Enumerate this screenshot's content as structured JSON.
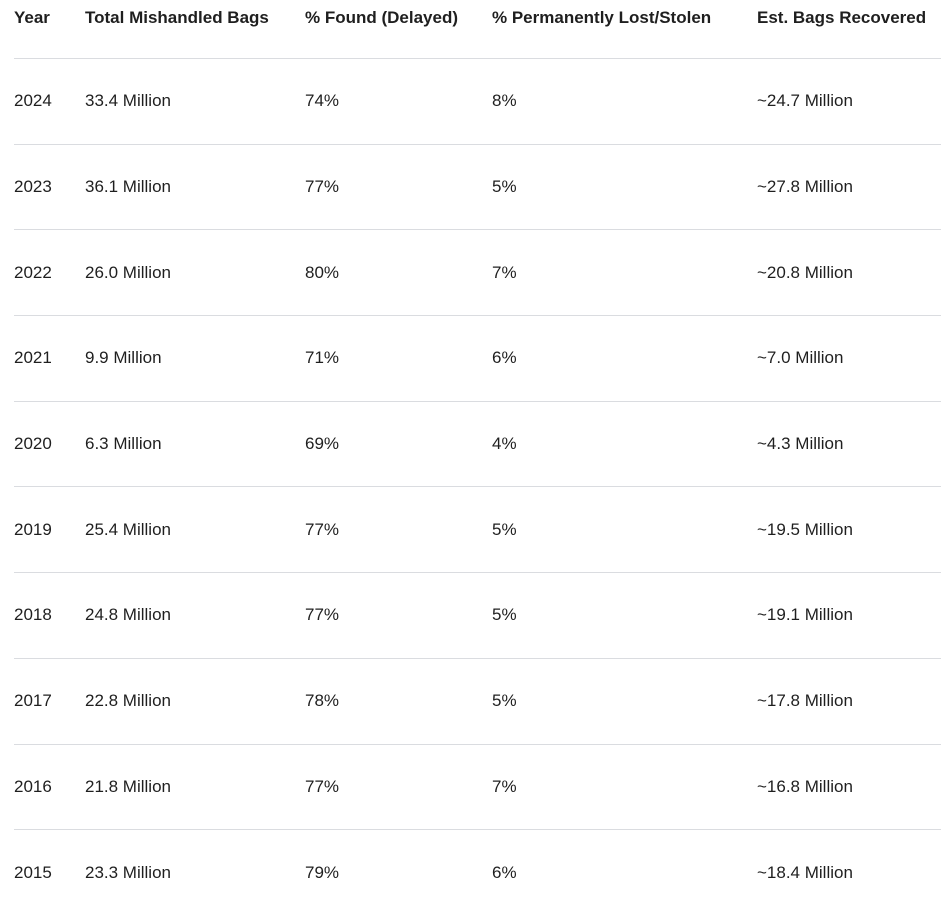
{
  "page": {
    "background_color": "#ffffff",
    "text_color": "#1f1f1f",
    "divider_color": "#dadce0"
  },
  "table": {
    "headers": {
      "year": "Year",
      "total_mishandled": "Total Mishandled Bags",
      "pct_found": "% Found (Delayed)",
      "pct_lost": "% Permanently Lost/Stolen",
      "est_recovered": "Est. Bags Recovered"
    },
    "rows": [
      {
        "year": "2024",
        "total_mishandled": "33.4 Million",
        "pct_found": "74%",
        "pct_lost": "8%",
        "est_recovered": "~24.7 Million"
      },
      {
        "year": "2023",
        "total_mishandled": "36.1 Million",
        "pct_found": "77%",
        "pct_lost": "5%",
        "est_recovered": "~27.8 Million"
      },
      {
        "year": "2022",
        "total_mishandled": "26.0 Million",
        "pct_found": "80%",
        "pct_lost": "7%",
        "est_recovered": "~20.8 Million"
      },
      {
        "year": "2021",
        "total_mishandled": "9.9 Million",
        "pct_found": "71%",
        "pct_lost": "6%",
        "est_recovered": "~7.0 Million"
      },
      {
        "year": "2020",
        "total_mishandled": "6.3 Million",
        "pct_found": "69%",
        "pct_lost": "4%",
        "est_recovered": "~4.3 Million"
      },
      {
        "year": "2019",
        "total_mishandled": "25.4 Million",
        "pct_found": "77%",
        "pct_lost": "5%",
        "est_recovered": "~19.5 Million"
      },
      {
        "year": "2018",
        "total_mishandled": "24.8 Million",
        "pct_found": "77%",
        "pct_lost": "5%",
        "est_recovered": "~19.1 Million"
      },
      {
        "year": "2017",
        "total_mishandled": "22.8 Million",
        "pct_found": "78%",
        "pct_lost": "5%",
        "est_recovered": "~17.8 Million"
      },
      {
        "year": "2016",
        "total_mishandled": "21.8 Million",
        "pct_found": "77%",
        "pct_lost": "7%",
        "est_recovered": "~16.8 Million"
      },
      {
        "year": "2015",
        "total_mishandled": "23.3 Million",
        "pct_found": "79%",
        "pct_lost": "6%",
        "est_recovered": "~18.4 Million"
      }
    ]
  },
  "chart_data": {
    "type": "table",
    "columns": [
      "Year",
      "Total Mishandled Bags",
      "% Found (Delayed)",
      "% Permanently Lost/Stolen",
      "Est. Bags Recovered"
    ],
    "rows": [
      [
        "2024",
        "33.4 Million",
        "74%",
        "8%",
        "~24.7 Million"
      ],
      [
        "2023",
        "36.1 Million",
        "77%",
        "5%",
        "~27.8 Million"
      ],
      [
        "2022",
        "26.0 Million",
        "80%",
        "7%",
        "~20.8 Million"
      ],
      [
        "2021",
        "9.9 Million",
        "71%",
        "6%",
        "~7.0 Million"
      ],
      [
        "2020",
        "6.3 Million",
        "69%",
        "4%",
        "~4.3 Million"
      ],
      [
        "2019",
        "25.4 Million",
        "77%",
        "5%",
        "~19.5 Million"
      ],
      [
        "2018",
        "24.8 Million",
        "77%",
        "5%",
        "~19.1 Million"
      ],
      [
        "2017",
        "22.8 Million",
        "78%",
        "5%",
        "~17.8 Million"
      ],
      [
        "2016",
        "21.8 Million",
        "77%",
        "7%",
        "~16.8 Million"
      ],
      [
        "2015",
        "23.3 Million",
        "79%",
        "6%",
        "~18.4 Million"
      ]
    ]
  }
}
